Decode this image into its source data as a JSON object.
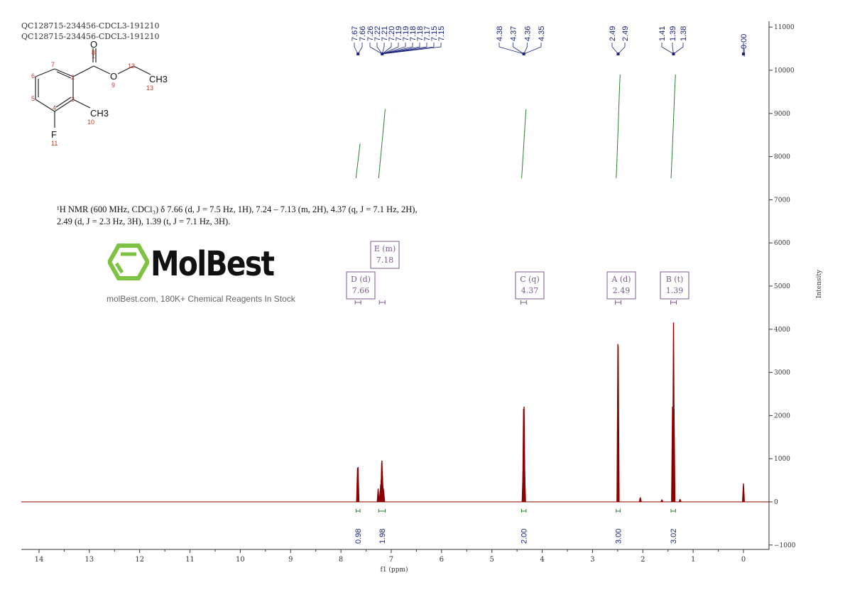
{
  "sample_ids": [
    "QC128715-234456-CDCL3-191210",
    "QC128715-234456-CDCL3-191210"
  ],
  "structure": {
    "atoms": {
      "O8": "O",
      "O9": "O",
      "CH3_13": "CH3",
      "CH3_10": "CH3",
      "F": "F"
    },
    "numbers": [
      "1",
      "2",
      "3",
      "4",
      "5",
      "6",
      "7",
      "8",
      "9",
      "10",
      "11",
      "12",
      "13"
    ]
  },
  "description": {
    "line1": "¹H NMR (600 MHz, CDCl₃) δ 7.66 (d, J = 7.5 Hz, 1H), 7.24 – 7.13 (m, 2H), 4.37 (q, J = 7.1 Hz, 2H),",
    "line2": "2.49 (d, J = 2.3 Hz, 3H), 1.39 (t, J = 7.1 Hz, 3H)."
  },
  "watermark": {
    "brand": "MolBest",
    "tagline": "molBest.com, 180K+ Chemical Reagents In Stock",
    "color": "#7dc242"
  },
  "chart_data": {
    "type": "line",
    "xlabel": "f1 (ppm)",
    "ylabel": "Intensity",
    "xlim": [
      14.4,
      -0.5
    ],
    "x_reversed": true,
    "ylim": [
      -1000,
      11000
    ],
    "x_ticks": [
      14,
      13,
      12,
      11,
      10,
      9,
      8,
      7,
      6,
      5,
      4,
      3,
      2,
      1,
      0
    ],
    "y_ticks": [
      -1000,
      0,
      1000,
      2000,
      3000,
      4000,
      5000,
      6000,
      7000,
      8000,
      9000,
      10000,
      11000
    ],
    "spectrum_color": "#8b0000",
    "peaks": [
      {
        "ppm": 7.67,
        "intensity": 780
      },
      {
        "ppm": 7.66,
        "intensity": 800
      },
      {
        "ppm": 7.26,
        "intensity": 300
      },
      {
        "ppm": 7.22,
        "intensity": 250
      },
      {
        "ppm": 7.21,
        "intensity": 400
      },
      {
        "ppm": 7.2,
        "intensity": 500
      },
      {
        "ppm": 7.19,
        "intensity": 900
      },
      {
        "ppm": 7.185,
        "intensity": 950
      },
      {
        "ppm": 7.18,
        "intensity": 700
      },
      {
        "ppm": 7.175,
        "intensity": 600
      },
      {
        "ppm": 7.17,
        "intensity": 400
      },
      {
        "ppm": 7.155,
        "intensity": 300
      },
      {
        "ppm": 7.15,
        "intensity": 250
      },
      {
        "ppm": 4.38,
        "intensity": 700
      },
      {
        "ppm": 4.37,
        "intensity": 2150
      },
      {
        "ppm": 4.36,
        "intensity": 2200
      },
      {
        "ppm": 4.35,
        "intensity": 750
      },
      {
        "ppm": 2.495,
        "intensity": 3650
      },
      {
        "ppm": 2.49,
        "intensity": 3600
      },
      {
        "ppm": 2.05,
        "intensity": 100
      },
      {
        "ppm": 1.62,
        "intensity": 50
      },
      {
        "ppm": 1.41,
        "intensity": 2200
      },
      {
        "ppm": 1.39,
        "intensity": 4150
      },
      {
        "ppm": 1.38,
        "intensity": 2150
      },
      {
        "ppm": 1.26,
        "intensity": 60
      },
      {
        "ppm": 0.0,
        "intensity": 420
      }
    ],
    "peak_label_groups": [
      {
        "anchor": 7.66,
        "labels": [
          "7.67",
          "7.66"
        ],
        "first": 0
      },
      {
        "anchor": 7.18,
        "labels": [
          "7.26",
          "7.22",
          "7.21",
          "7.20",
          "7.19",
          "7.19",
          "7.18",
          "7.18",
          "7.17",
          "7.15",
          "7.15"
        ],
        "first": 2
      },
      {
        "anchor": 4.365,
        "labels": [
          "4.38",
          "4.37",
          "4.36",
          "4.35"
        ]
      },
      {
        "anchor": 2.49,
        "labels": [
          "2.49",
          "2.49"
        ]
      },
      {
        "anchor": 1.39,
        "labels": [
          "1.41",
          "1.39",
          "1.38"
        ]
      },
      {
        "anchor": 0.0,
        "labels": [
          "0.00"
        ]
      }
    ],
    "integrals": [
      {
        "from": 7.7,
        "to": 7.62,
        "value": "0.98",
        "start": 7500,
        "end": 8300
      },
      {
        "from": 7.25,
        "to": 7.12,
        "value": "1.98",
        "start": 7500,
        "end": 9100
      },
      {
        "from": 4.41,
        "to": 4.32,
        "value": "2.00",
        "start": 7500,
        "end": 9100
      },
      {
        "from": 2.53,
        "to": 2.45,
        "value": "3.00",
        "start": 7500,
        "end": 9900
      },
      {
        "from": 1.44,
        "to": 1.35,
        "value": "3.02",
        "start": 7500,
        "end": 9900
      }
    ],
    "multiplets": [
      {
        "id": "D",
        "type": "d",
        "shift": "7.66",
        "ppm": 7.66
      },
      {
        "id": "E",
        "type": "m",
        "shift": "7.18",
        "ppm": 7.18
      },
      {
        "id": "C",
        "type": "q",
        "shift": "4.37",
        "ppm": 4.37
      },
      {
        "id": "A",
        "type": "d",
        "shift": "2.49",
        "ppm": 2.49
      },
      {
        "id": "B",
        "type": "t",
        "shift": "1.39",
        "ppm": 1.39
      }
    ],
    "label_color": "#1a237e",
    "integral_color": "#2e7d32",
    "multiplet_color": "#7b5a8a"
  }
}
